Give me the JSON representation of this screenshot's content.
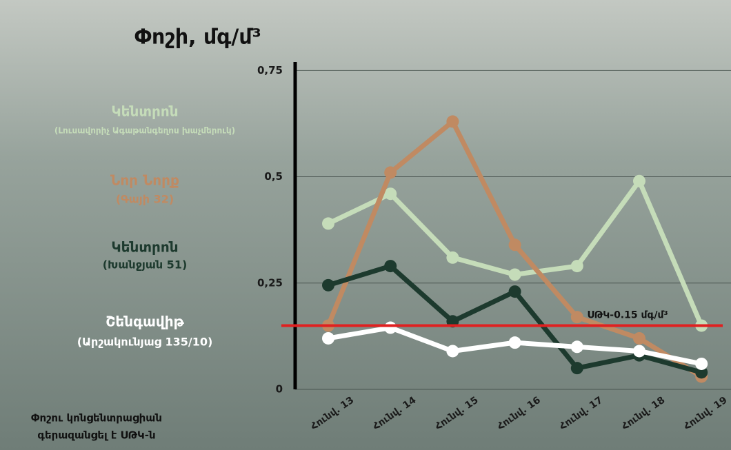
{
  "chart_data": {
    "type": "line",
    "title": "Փոշի, մգ/մ³",
    "categories": [
      "Հունվ. 13",
      "Հունվ. 14",
      "Հունվ. 15",
      "Հունվ. 16",
      "Հունվ. 17",
      "Հունվ. 18",
      "Հունվ. 19"
    ],
    "ylim": [
      0,
      0.77
    ],
    "yticks": [
      {
        "value": 0,
        "label": "0"
      },
      {
        "value": 0.25,
        "label": "0,25"
      },
      {
        "value": 0.5,
        "label": "0,5"
      },
      {
        "value": 0.75,
        "label": "0,75"
      }
    ],
    "grid": true,
    "series": [
      {
        "name": "Կենտրոն",
        "address": "(Լուսավորիչ Ագաթանգեղոս խաչմերուկ)",
        "color": "#c5dcb9",
        "values": [
          0.39,
          0.46,
          0.31,
          0.27,
          0.29,
          0.49,
          0.15
        ]
      },
      {
        "name": "Նոր Նորք",
        "address": "(Գայի 32)",
        "color": "#c08a62",
        "values": [
          0.15,
          0.51,
          0.63,
          0.34,
          0.17,
          0.12,
          0.03
        ]
      },
      {
        "name": "Կենտրոն",
        "address": "(Խանջյան 51)",
        "color": "#1d3a2e",
        "values": [
          0.245,
          0.29,
          0.16,
          0.23,
          0.05,
          0.08,
          0.04
        ]
      },
      {
        "name": "Շենգավիթ",
        "address": "(Արշակունյաց 135/10)",
        "color": "#ffffff",
        "values": [
          0.12,
          0.145,
          0.09,
          0.11,
          0.1,
          0.09,
          0.06
        ]
      }
    ],
    "threshold": {
      "value": 0.15,
      "label": "ՍԹԿ-0.15 մգ/մ³",
      "color": "#e02020"
    },
    "footnote": [
      "Փոշու կոնցենտրացիան",
      "գերազանցել է ՍԹԿ-ն"
    ]
  }
}
